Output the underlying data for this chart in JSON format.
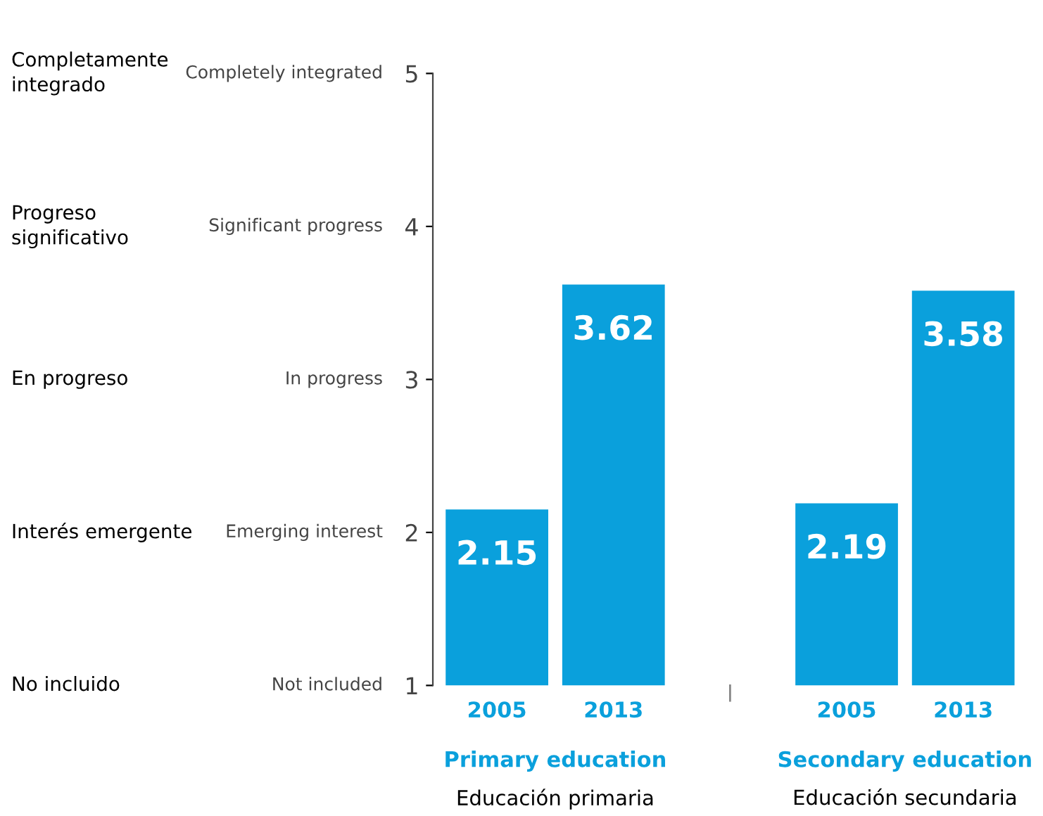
{
  "chart_data": {
    "type": "bar",
    "categories": [
      "2005",
      "2013",
      null,
      "2005",
      "2013"
    ],
    "values": [
      2.15,
      3.62,
      null,
      2.19,
      3.58
    ],
    "color": "#0aa0dc",
    "data_labels": true,
    "ylim": [
      1,
      5
    ],
    "yticks": [
      1,
      2,
      3,
      4,
      5
    ],
    "grid": false,
    "annotations": [
      "Completely integrated",
      "Completamente\nintegrado",
      "Significant progress",
      "Progreso\nsignificativo",
      "In progress",
      "En progreso",
      "Emerging interest",
      "Interés emergente",
      "Not included",
      "No incluido",
      "Primary education",
      "Educación primaria",
      "Secondary education",
      "Educación secundaria"
    ]
  }
}
